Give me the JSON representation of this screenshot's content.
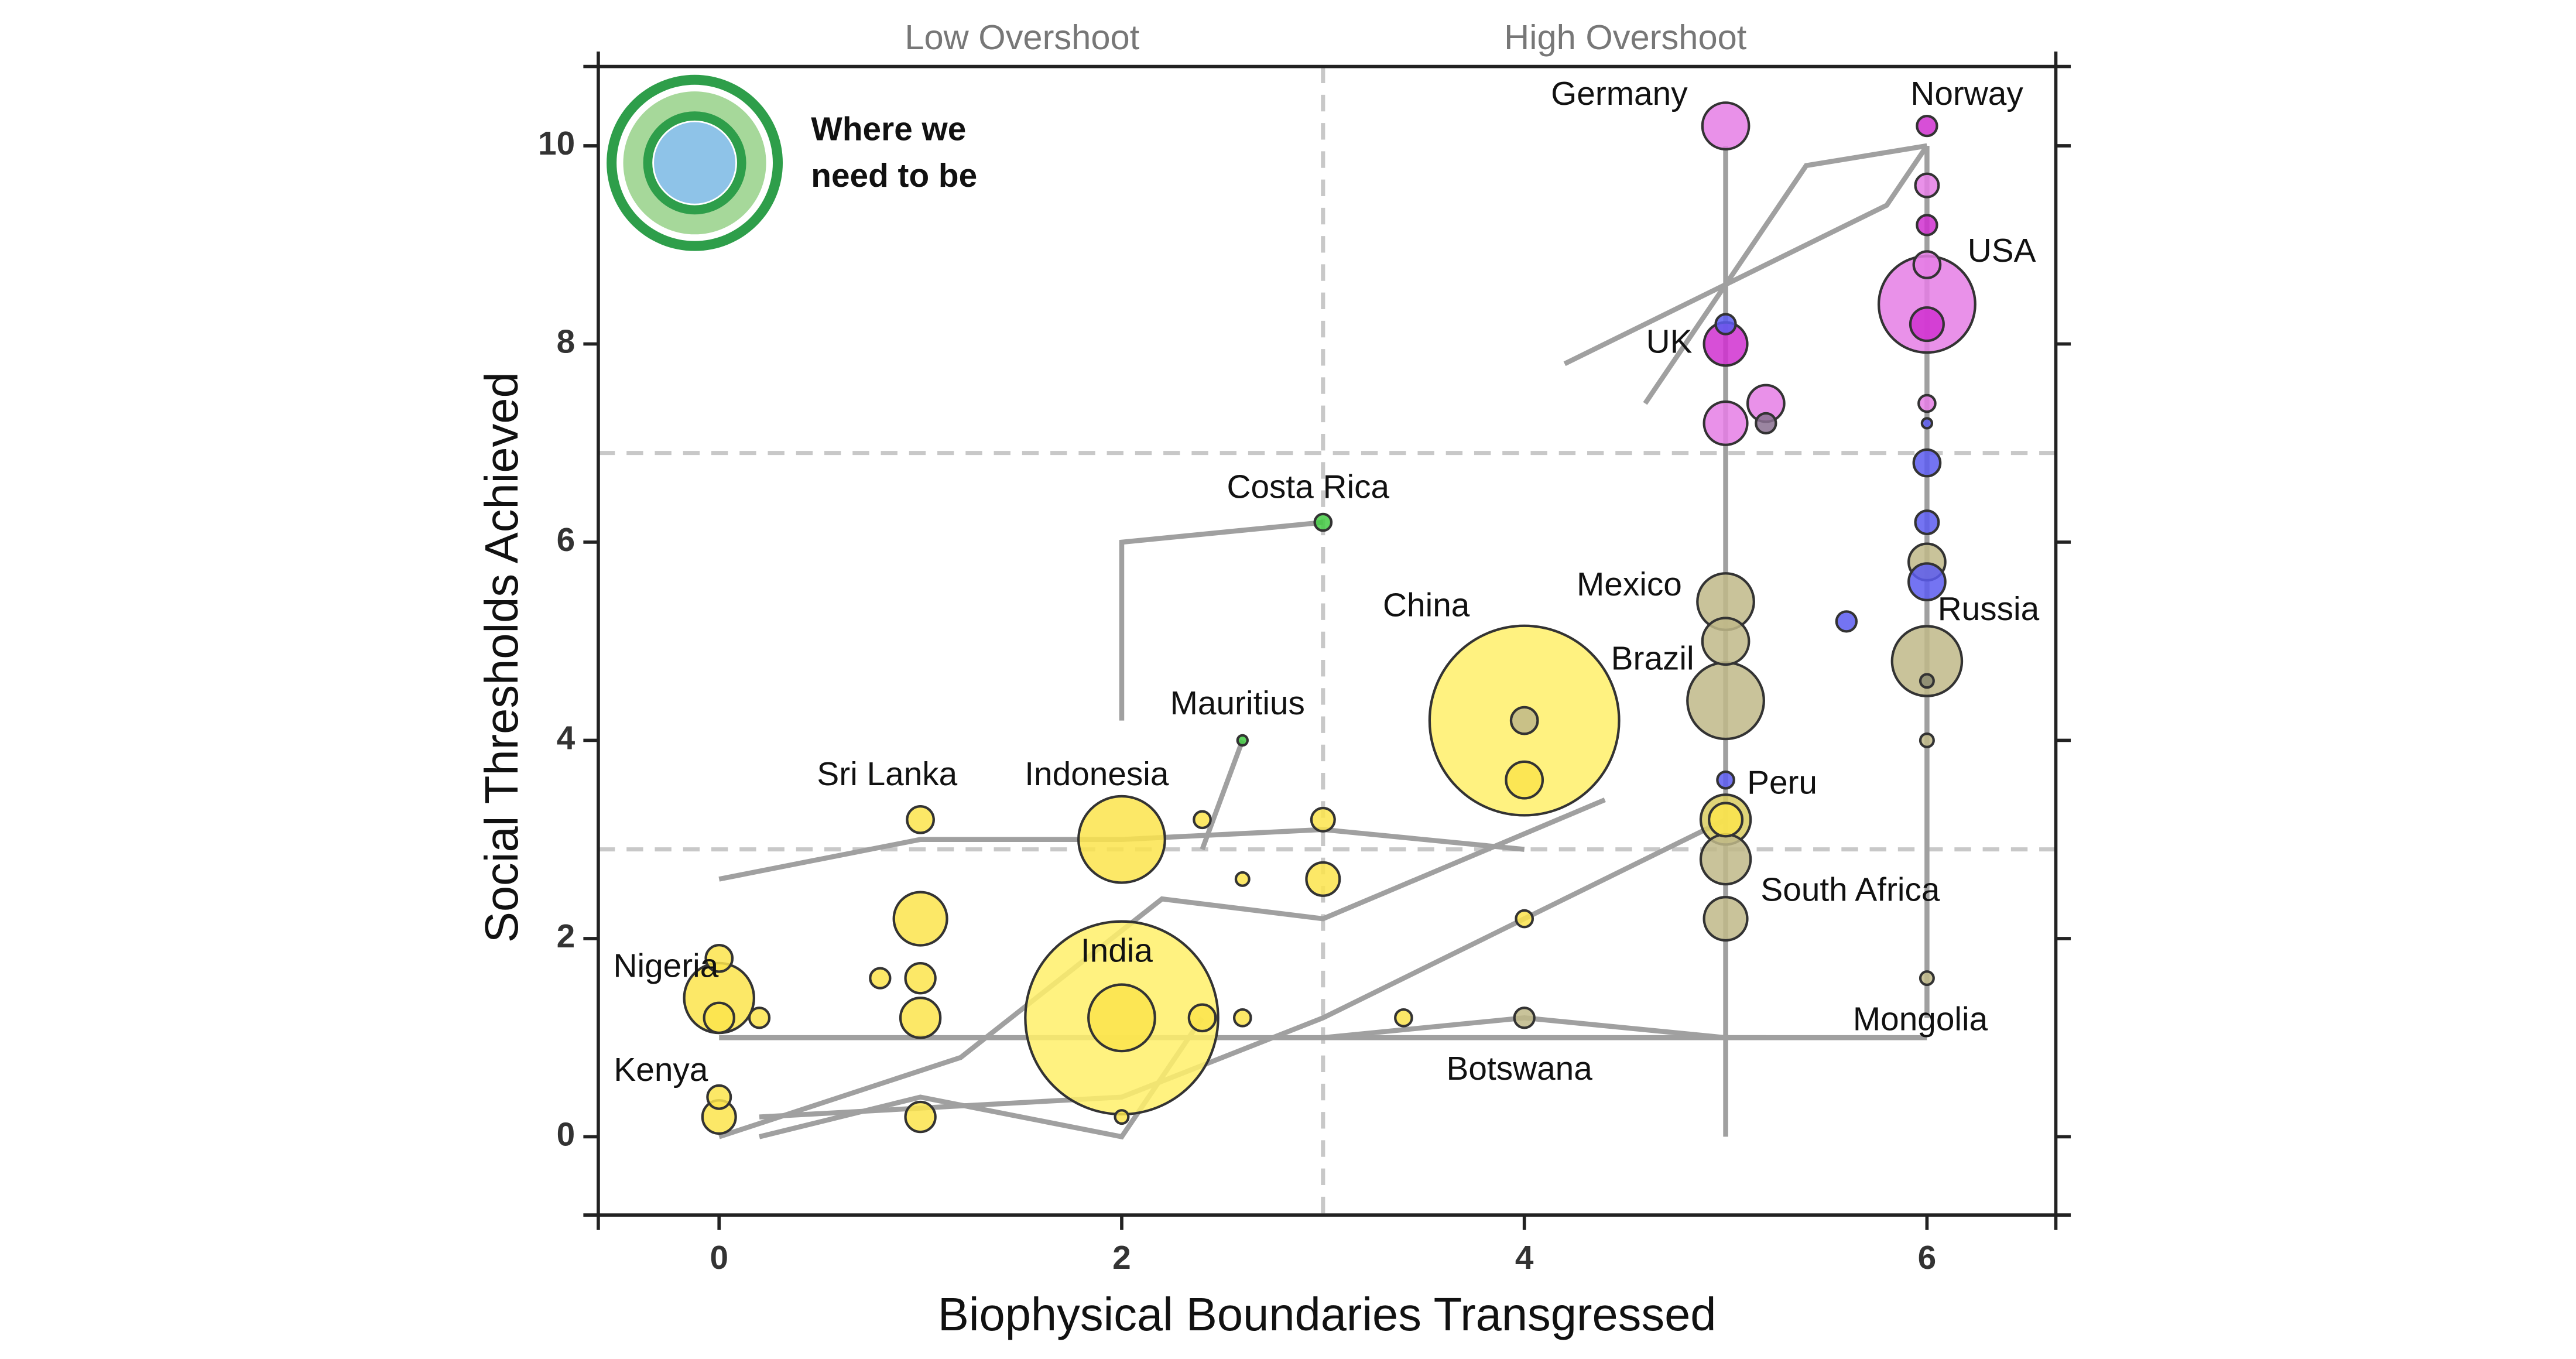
{
  "chart_data": {
    "type": "bubble",
    "quadrant_labels": [
      "Low Overshoot",
      "High Overshoot"
    ],
    "xlabel": "Biophysical Boundaries Transgressed",
    "ylabel": "Social Thresholds Achieved",
    "inset_text": [
      "Where we",
      "need to be"
    ],
    "xlim": [
      -0.6,
      6.64
    ],
    "ylim": [
      -0.79,
      10.8
    ],
    "xticks": [
      0,
      2,
      4,
      6
    ],
    "yticks": [
      0,
      2,
      4,
      6,
      8,
      10
    ],
    "x_threshold": 3,
    "y_thresholds": [
      2.9,
      6.9
    ],
    "trajectories": [
      {
        "x": [
          2,
          2,
          3
        ],
        "y": [
          4.2,
          6.0,
          6.2
        ]
      },
      {
        "x": [
          2.4,
          2.6
        ],
        "y": [
          2.9,
          4.0
        ]
      },
      {
        "x": [
          5,
          5
        ],
        "y": [
          0,
          10
        ]
      },
      {
        "x": [
          6,
          6
        ],
        "y": [
          1.2,
          10
        ]
      },
      {
        "x": [
          0,
          5.2
        ],
        "y": [
          1,
          1
        ]
      },
      {
        "x": [
          0.2,
          2,
          3,
          4,
          5
        ],
        "y": [
          0.2,
          0.4,
          1.2,
          2.2,
          3.2
        ]
      },
      {
        "x": [
          0,
          1,
          2,
          3,
          4
        ],
        "y": [
          2.6,
          3,
          3,
          3.1,
          2.9
        ]
      },
      {
        "x": [
          3,
          4,
          5,
          6
        ],
        "y": [
          1.0,
          1.2,
          1.0,
          1.0
        ]
      },
      {
        "x": [
          4.6,
          5.4,
          6
        ],
        "y": [
          7.4,
          9.8,
          10
        ]
      },
      {
        "x": [
          0.2,
          1,
          2,
          2.4
        ],
        "y": [
          0,
          0.4,
          0,
          1.2
        ]
      },
      {
        "x": [
          4.2,
          5,
          5.8,
          6
        ],
        "y": [
          7.8,
          8.6,
          9.4,
          10
        ]
      },
      {
        "x": [
          0,
          1.2,
          2.2,
          3,
          4.4
        ],
        "y": [
          0,
          0.8,
          2.4,
          2.2,
          3.4
        ]
      }
    ],
    "points": [
      {
        "x": 4,
        "y": 4.2,
        "size": 57,
        "color": "#fff06a",
        "name": "China"
      },
      {
        "x": 2,
        "y": 1.2,
        "size": 58,
        "color": "#fff06a",
        "name": "India"
      },
      {
        "x": 6,
        "y": 8.4,
        "size": 29,
        "color": "#e57ee5",
        "name": "USA"
      },
      {
        "x": 2,
        "y": 3.0,
        "size": 26,
        "color": "#fbe44c",
        "name": "Indonesia"
      },
      {
        "x": 5,
        "y": 4.4,
        "size": 23,
        "color": "#bfb888",
        "name": "Brazil"
      },
      {
        "x": 6,
        "y": 4.8,
        "size": 21,
        "color": "#bfb888",
        "name": "Russia"
      },
      {
        "x": 0,
        "y": 1.4,
        "size": 21,
        "color": "#fbe44c",
        "name": "Nigeria"
      },
      {
        "x": 2,
        "y": 1.2,
        "size": 20,
        "color": "#fbe44c"
      },
      {
        "x": 5,
        "y": 5.4,
        "size": 17,
        "color": "#bfb888",
        "name": "Mexico"
      },
      {
        "x": 1,
        "y": 2.2,
        "size": 16,
        "color": "#fbe44c"
      },
      {
        "x": 5,
        "y": 10.2,
        "size": 14,
        "color": "#e57ee5",
        "name": "Germany"
      },
      {
        "x": 5,
        "y": 5.0,
        "size": 14,
        "color": "#bfb888"
      },
      {
        "x": 5,
        "y": 3.2,
        "size": 15,
        "color": "#d9cc60"
      },
      {
        "x": 5,
        "y": 2.8,
        "size": 15,
        "color": "#bfb888"
      },
      {
        "x": 5,
        "y": 8.0,
        "size": 13,
        "color": "#d030d0",
        "name": "UK"
      },
      {
        "x": 5,
        "y": 7.2,
        "size": 13,
        "color": "#e57ee5"
      },
      {
        "x": 5,
        "y": 2.2,
        "size": 13,
        "color": "#bfb888",
        "name": "South Africa"
      },
      {
        "x": 1,
        "y": 1.2,
        "size": 12,
        "color": "#fbe44c"
      },
      {
        "x": 5.2,
        "y": 7.4,
        "size": 11,
        "color": "#e57ee5"
      },
      {
        "x": 6,
        "y": 5.8,
        "size": 11,
        "color": "#bfb888"
      },
      {
        "x": 6,
        "y": 5.6,
        "size": 11,
        "color": "#5c5cf0"
      },
      {
        "x": 4,
        "y": 3.6,
        "size": 11,
        "color": "#fbe44c"
      },
      {
        "x": 3,
        "y": 2.6,
        "size": 10,
        "color": "#fbe44c"
      },
      {
        "x": 5,
        "y": 3.2,
        "size": 10,
        "color": "#fbe44c"
      },
      {
        "x": 6,
        "y": 8.2,
        "size": 10,
        "color": "#d030d0"
      },
      {
        "x": 0,
        "y": 0.2,
        "size": 10,
        "color": "#fbe44c",
        "name": "Kenya"
      },
      {
        "x": 1,
        "y": 1.6,
        "size": 9,
        "color": "#fbe44c"
      },
      {
        "x": 1,
        "y": 0.2,
        "size": 9,
        "color": "#fbe44c"
      },
      {
        "x": 0,
        "y": 1.2,
        "size": 9,
        "color": "#fbe44c"
      },
      {
        "x": 1,
        "y": 3.2,
        "size": 8,
        "color": "#fbe44c",
        "name": "Sri Lanka"
      },
      {
        "x": 0,
        "y": 1.8,
        "size": 8,
        "color": "#fbe44c"
      },
      {
        "x": 2.4,
        "y": 1.2,
        "size": 8,
        "color": "#fbe44c"
      },
      {
        "x": 4,
        "y": 4.2,
        "size": 8,
        "color": "#bfb888"
      },
      {
        "x": 6,
        "y": 8.8,
        "size": 8,
        "color": "#e57ee5"
      },
      {
        "x": 6,
        "y": 6.8,
        "size": 8,
        "color": "#5c5cf0"
      },
      {
        "x": 6,
        "y": 9.6,
        "size": 7,
        "color": "#e57ee5"
      },
      {
        "x": 6,
        "y": 6.2,
        "size": 7,
        "color": "#5c5cf0"
      },
      {
        "x": 3,
        "y": 3.2,
        "size": 7,
        "color": "#fbe44c"
      },
      {
        "x": 0,
        "y": 0.4,
        "size": 7,
        "color": "#fbe44c"
      },
      {
        "x": 6,
        "y": 10.2,
        "size": 6,
        "color": "#d030d0",
        "name": "Norway"
      },
      {
        "x": 6,
        "y": 9.2,
        "size": 6,
        "color": "#d030d0"
      },
      {
        "x": 5,
        "y": 8.2,
        "size": 6,
        "color": "#5c5cf0"
      },
      {
        "x": 5.2,
        "y": 7.2,
        "size": 6,
        "color": "#8a7090"
      },
      {
        "x": 5.6,
        "y": 5.2,
        "size": 6,
        "color": "#5c5cf0"
      },
      {
        "x": 4,
        "y": 1.2,
        "size": 6,
        "color": "#bfb888",
        "name": "Botswana"
      },
      {
        "x": 0.8,
        "y": 1.6,
        "size": 6,
        "color": "#fbe44c"
      },
      {
        "x": 0.2,
        "y": 1.2,
        "size": 6,
        "color": "#fbe44c"
      },
      {
        "x": 5,
        "y": 3.6,
        "size": 5,
        "color": "#5c5cf0",
        "name": "Peru"
      },
      {
        "x": 6,
        "y": 7.4,
        "size": 5,
        "color": "#e57ee5"
      },
      {
        "x": 3,
        "y": 6.2,
        "size": 5,
        "color": "#44cc44",
        "name": "Costa Rica"
      },
      {
        "x": 4,
        "y": 2.2,
        "size": 5,
        "color": "#fbe44c"
      },
      {
        "x": 3.4,
        "y": 1.2,
        "size": 5,
        "color": "#fbe44c"
      },
      {
        "x": 2.4,
        "y": 3.2,
        "size": 5,
        "color": "#fbe44c"
      },
      {
        "x": 2.6,
        "y": 1.2,
        "size": 5,
        "color": "#fbe44c"
      },
      {
        "x": 6,
        "y": 4.6,
        "size": 4,
        "color": "#8a8a70"
      },
      {
        "x": 6,
        "y": 4.0,
        "size": 4,
        "color": "#bfb888"
      },
      {
        "x": 6,
        "y": 1.6,
        "size": 4,
        "color": "#bfb888",
        "name": "Mongolia"
      },
      {
        "x": 2.6,
        "y": 2.6,
        "size": 4,
        "color": "#fbe44c"
      },
      {
        "x": 2,
        "y": 0.2,
        "size": 4,
        "color": "#fbe44c"
      },
      {
        "x": 6,
        "y": 7.2,
        "size": 3,
        "color": "#5c5cf0"
      },
      {
        "x": 2.6,
        "y": 4.0,
        "size": 3,
        "color": "#44cc44",
        "name": "Mauritius"
      }
    ]
  }
}
